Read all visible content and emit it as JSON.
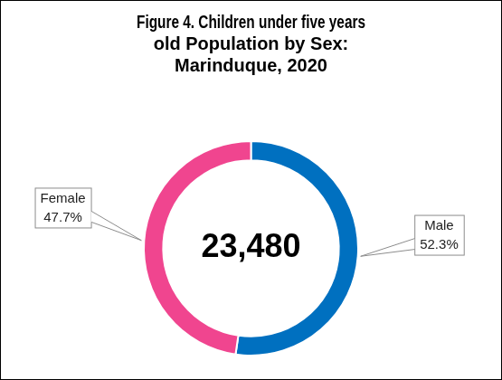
{
  "chart_data": {
    "type": "doughnut",
    "title": "Figure 4. Children under five years old Population by Sex: Marinduque, 2020",
    "categories": [
      "Male",
      "Female"
    ],
    "values": [
      52.3,
      47.7
    ],
    "value_labels": [
      "52.3%",
      "47.7%"
    ],
    "colors": [
      "#0070C0",
      "#F0458F"
    ],
    "center_text": "23,480",
    "data_labels": true
  }
}
